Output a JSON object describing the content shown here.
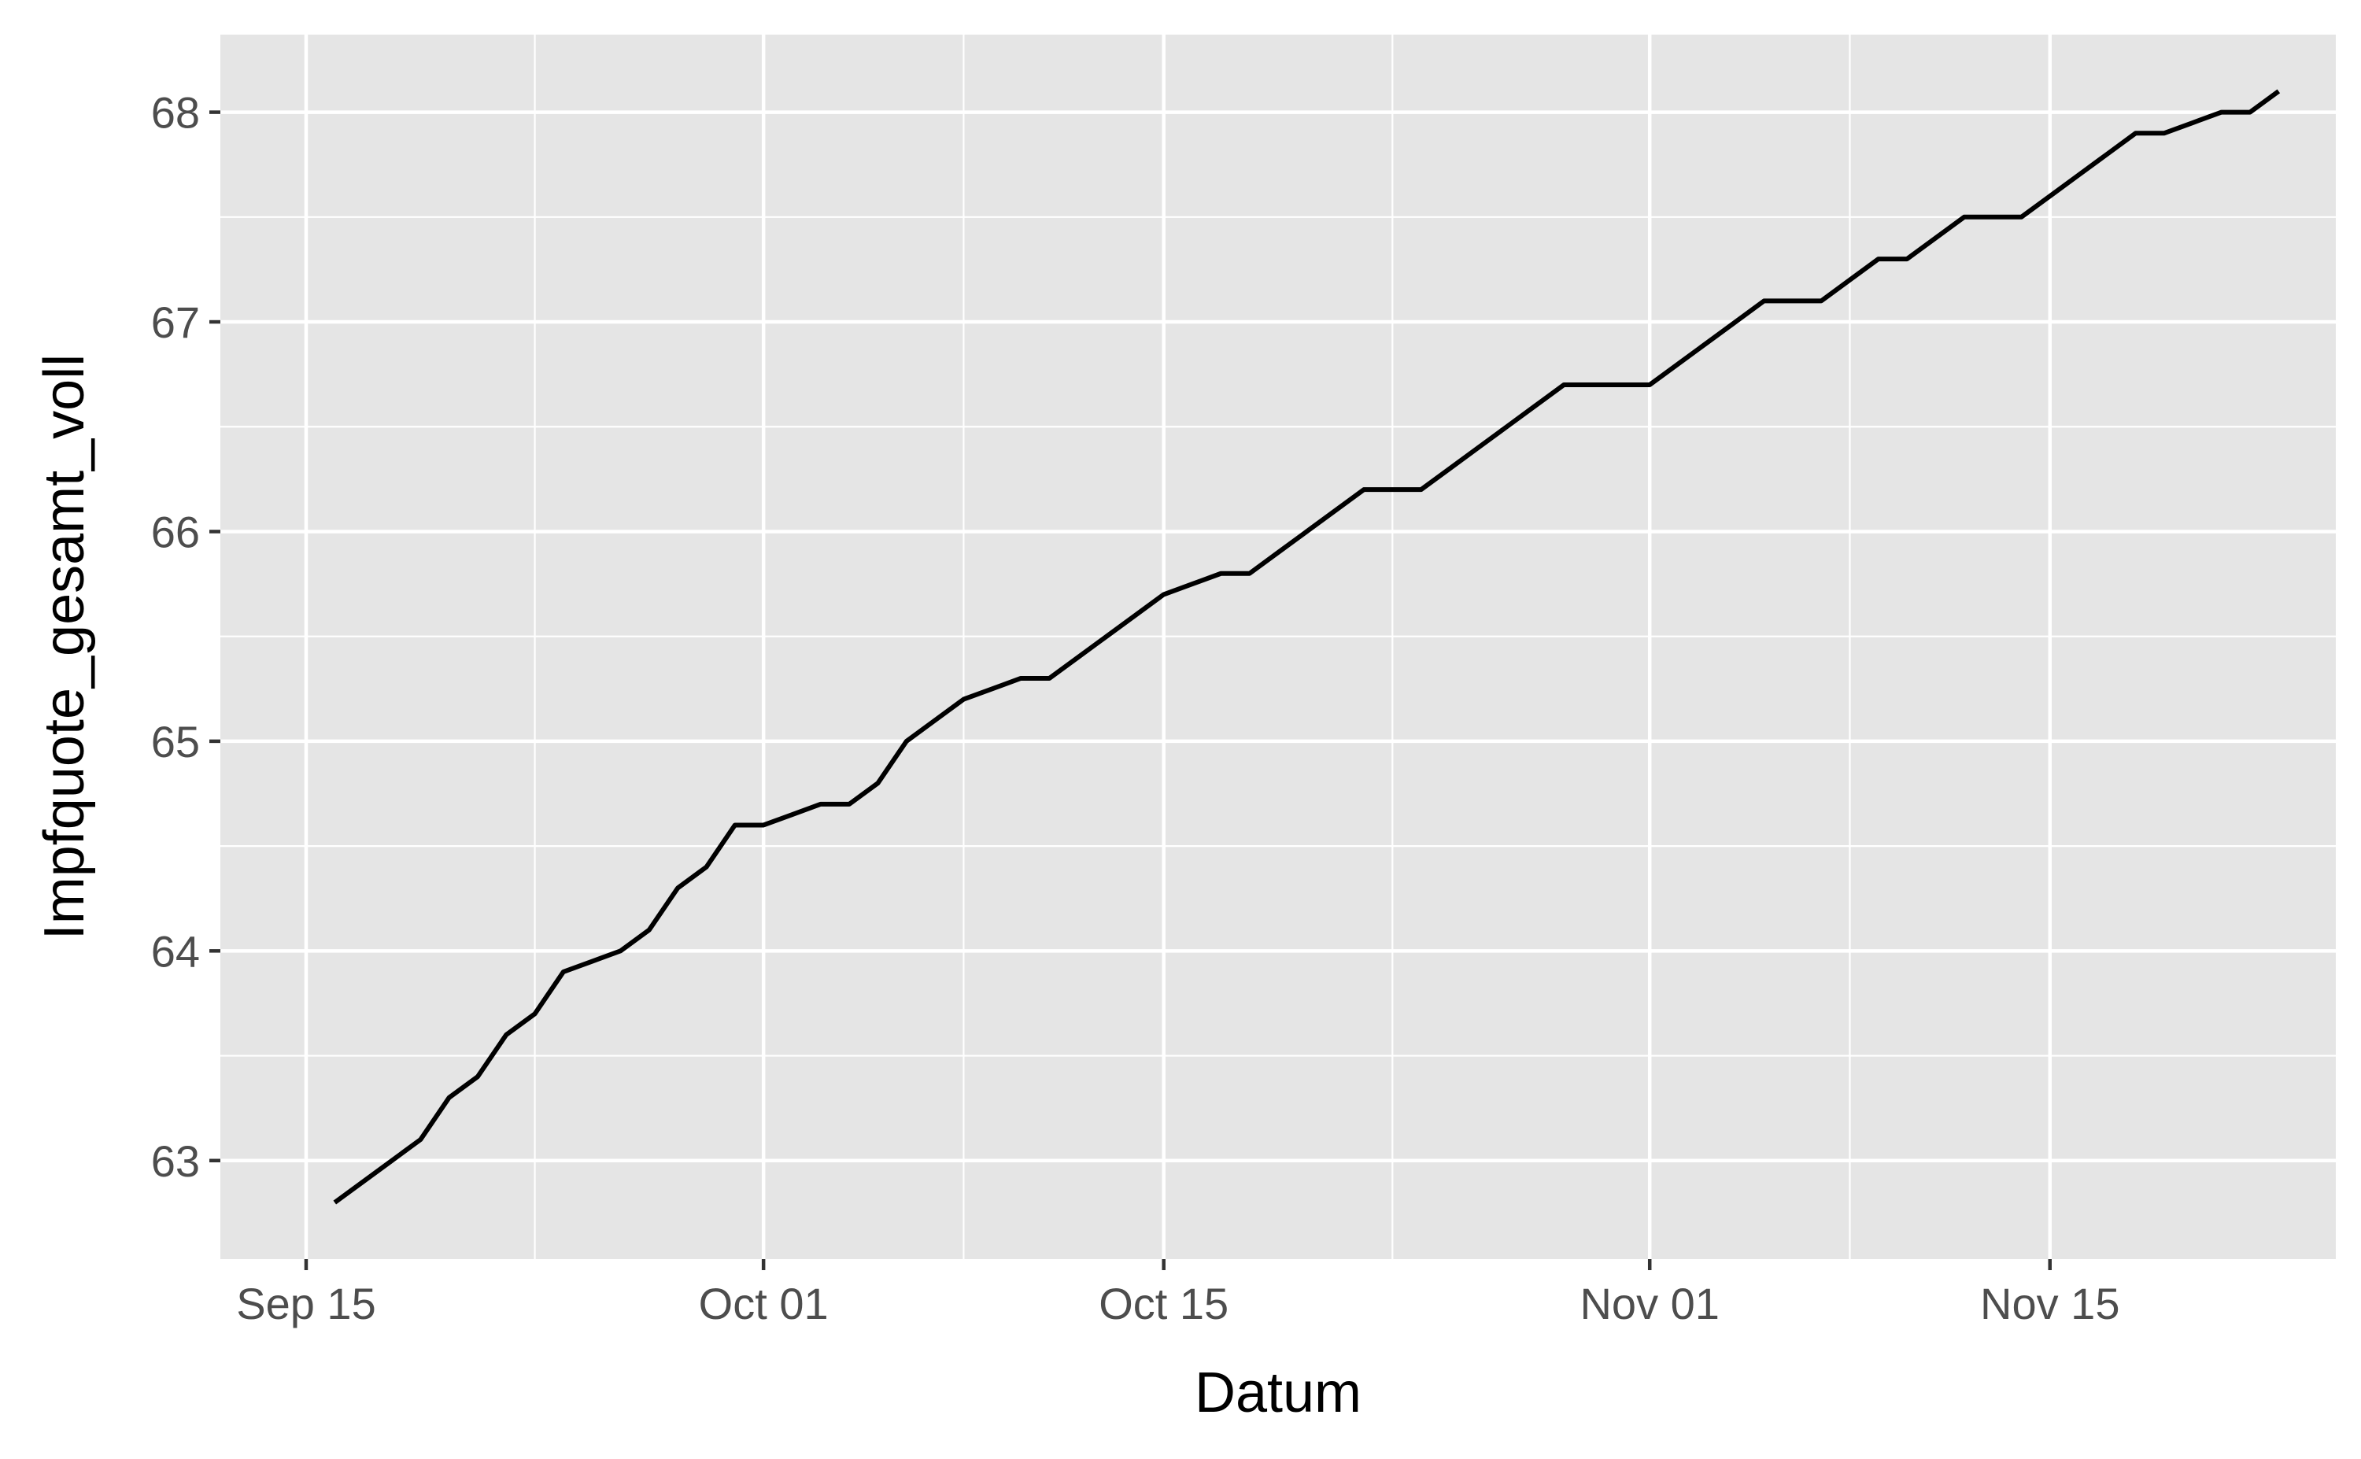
{
  "chart_data": {
    "type": "line",
    "title": "",
    "xlabel": "Datum",
    "ylabel": "Impfquote_gesamt_voll",
    "x_type": "date",
    "xlim": [
      "2021-09-12",
      "2021-11-25"
    ],
    "ylim": [
      62.53,
      68.37
    ],
    "x_major_ticks": [
      {
        "date": "2021-09-15",
        "label": "Sep 15"
      },
      {
        "date": "2021-10-01",
        "label": "Oct 01"
      },
      {
        "date": "2021-10-15",
        "label": "Oct 15"
      },
      {
        "date": "2021-11-01",
        "label": "Nov 01"
      },
      {
        "date": "2021-11-15",
        "label": "Nov 15"
      }
    ],
    "x_minor_ticks": [
      "2021-09-23",
      "2021-10-08",
      "2021-10-23",
      "2021-11-08"
    ],
    "y_major_ticks": [
      63,
      64,
      65,
      66,
      67,
      68
    ],
    "y_tick_labels": [
      "63",
      "64",
      "65",
      "66",
      "67",
      "68"
    ],
    "y_minor_ticks": [
      63.5,
      64.5,
      65.5,
      66.5,
      67.5
    ],
    "grid": true,
    "legend": "none",
    "colors": {
      "panel": "#e5e5e5",
      "grid": "#ffffff",
      "line": "#000000",
      "tick_label": "#4d4d4d",
      "axis_title": "#000000",
      "tick": "#333333"
    },
    "series": [
      {
        "x": [
          "2021-09-16",
          "2021-09-17",
          "2021-09-18",
          "2021-09-19",
          "2021-09-20",
          "2021-09-21",
          "2021-09-22",
          "2021-09-23",
          "2021-09-24",
          "2021-09-25",
          "2021-09-26",
          "2021-09-27",
          "2021-09-28",
          "2021-09-29",
          "2021-09-30",
          "2021-10-01",
          "2021-10-02",
          "2021-10-03",
          "2021-10-04",
          "2021-10-05",
          "2021-10-06",
          "2021-10-07",
          "2021-10-08",
          "2021-10-09",
          "2021-10-10",
          "2021-10-11",
          "2021-10-12",
          "2021-10-13",
          "2021-10-14",
          "2021-10-15",
          "2021-10-16",
          "2021-10-17",
          "2021-10-18",
          "2021-10-19",
          "2021-10-20",
          "2021-10-21",
          "2021-10-22",
          "2021-10-23",
          "2021-10-24",
          "2021-10-25",
          "2021-10-26",
          "2021-10-27",
          "2021-10-28",
          "2021-10-29",
          "2021-10-30",
          "2021-10-31",
          "2021-11-01",
          "2021-11-02",
          "2021-11-03",
          "2021-11-04",
          "2021-11-05",
          "2021-11-06",
          "2021-11-07",
          "2021-11-08",
          "2021-11-09",
          "2021-11-10",
          "2021-11-11",
          "2021-11-12",
          "2021-11-13",
          "2021-11-14",
          "2021-11-15",
          "2021-11-16",
          "2021-11-17",
          "2021-11-18",
          "2021-11-19",
          "2021-11-20",
          "2021-11-21",
          "2021-11-22",
          "2021-11-23"
        ],
        "y": [
          62.8,
          62.9,
          63.0,
          63.1,
          63.3,
          63.4,
          63.6,
          63.7,
          63.9,
          63.95,
          64.0,
          64.1,
          64.3,
          64.4,
          64.6,
          64.6,
          64.65,
          64.7,
          64.7,
          64.8,
          65.0,
          65.1,
          65.2,
          65.25,
          65.3,
          65.3,
          65.4,
          65.5,
          65.6,
          65.7,
          65.75,
          65.8,
          65.8,
          65.9,
          66.0,
          66.1,
          66.2,
          66.2,
          66.2,
          66.3,
          66.4,
          66.5,
          66.6,
          66.7,
          66.7,
          66.7,
          66.7,
          66.8,
          66.9,
          67.0,
          67.1,
          67.1,
          67.1,
          67.2,
          67.3,
          67.3,
          67.4,
          67.5,
          67.5,
          67.5,
          67.6,
          67.7,
          67.8,
          67.9,
          67.9,
          67.95,
          68.0,
          68.0,
          68.1
        ]
      }
    ]
  }
}
